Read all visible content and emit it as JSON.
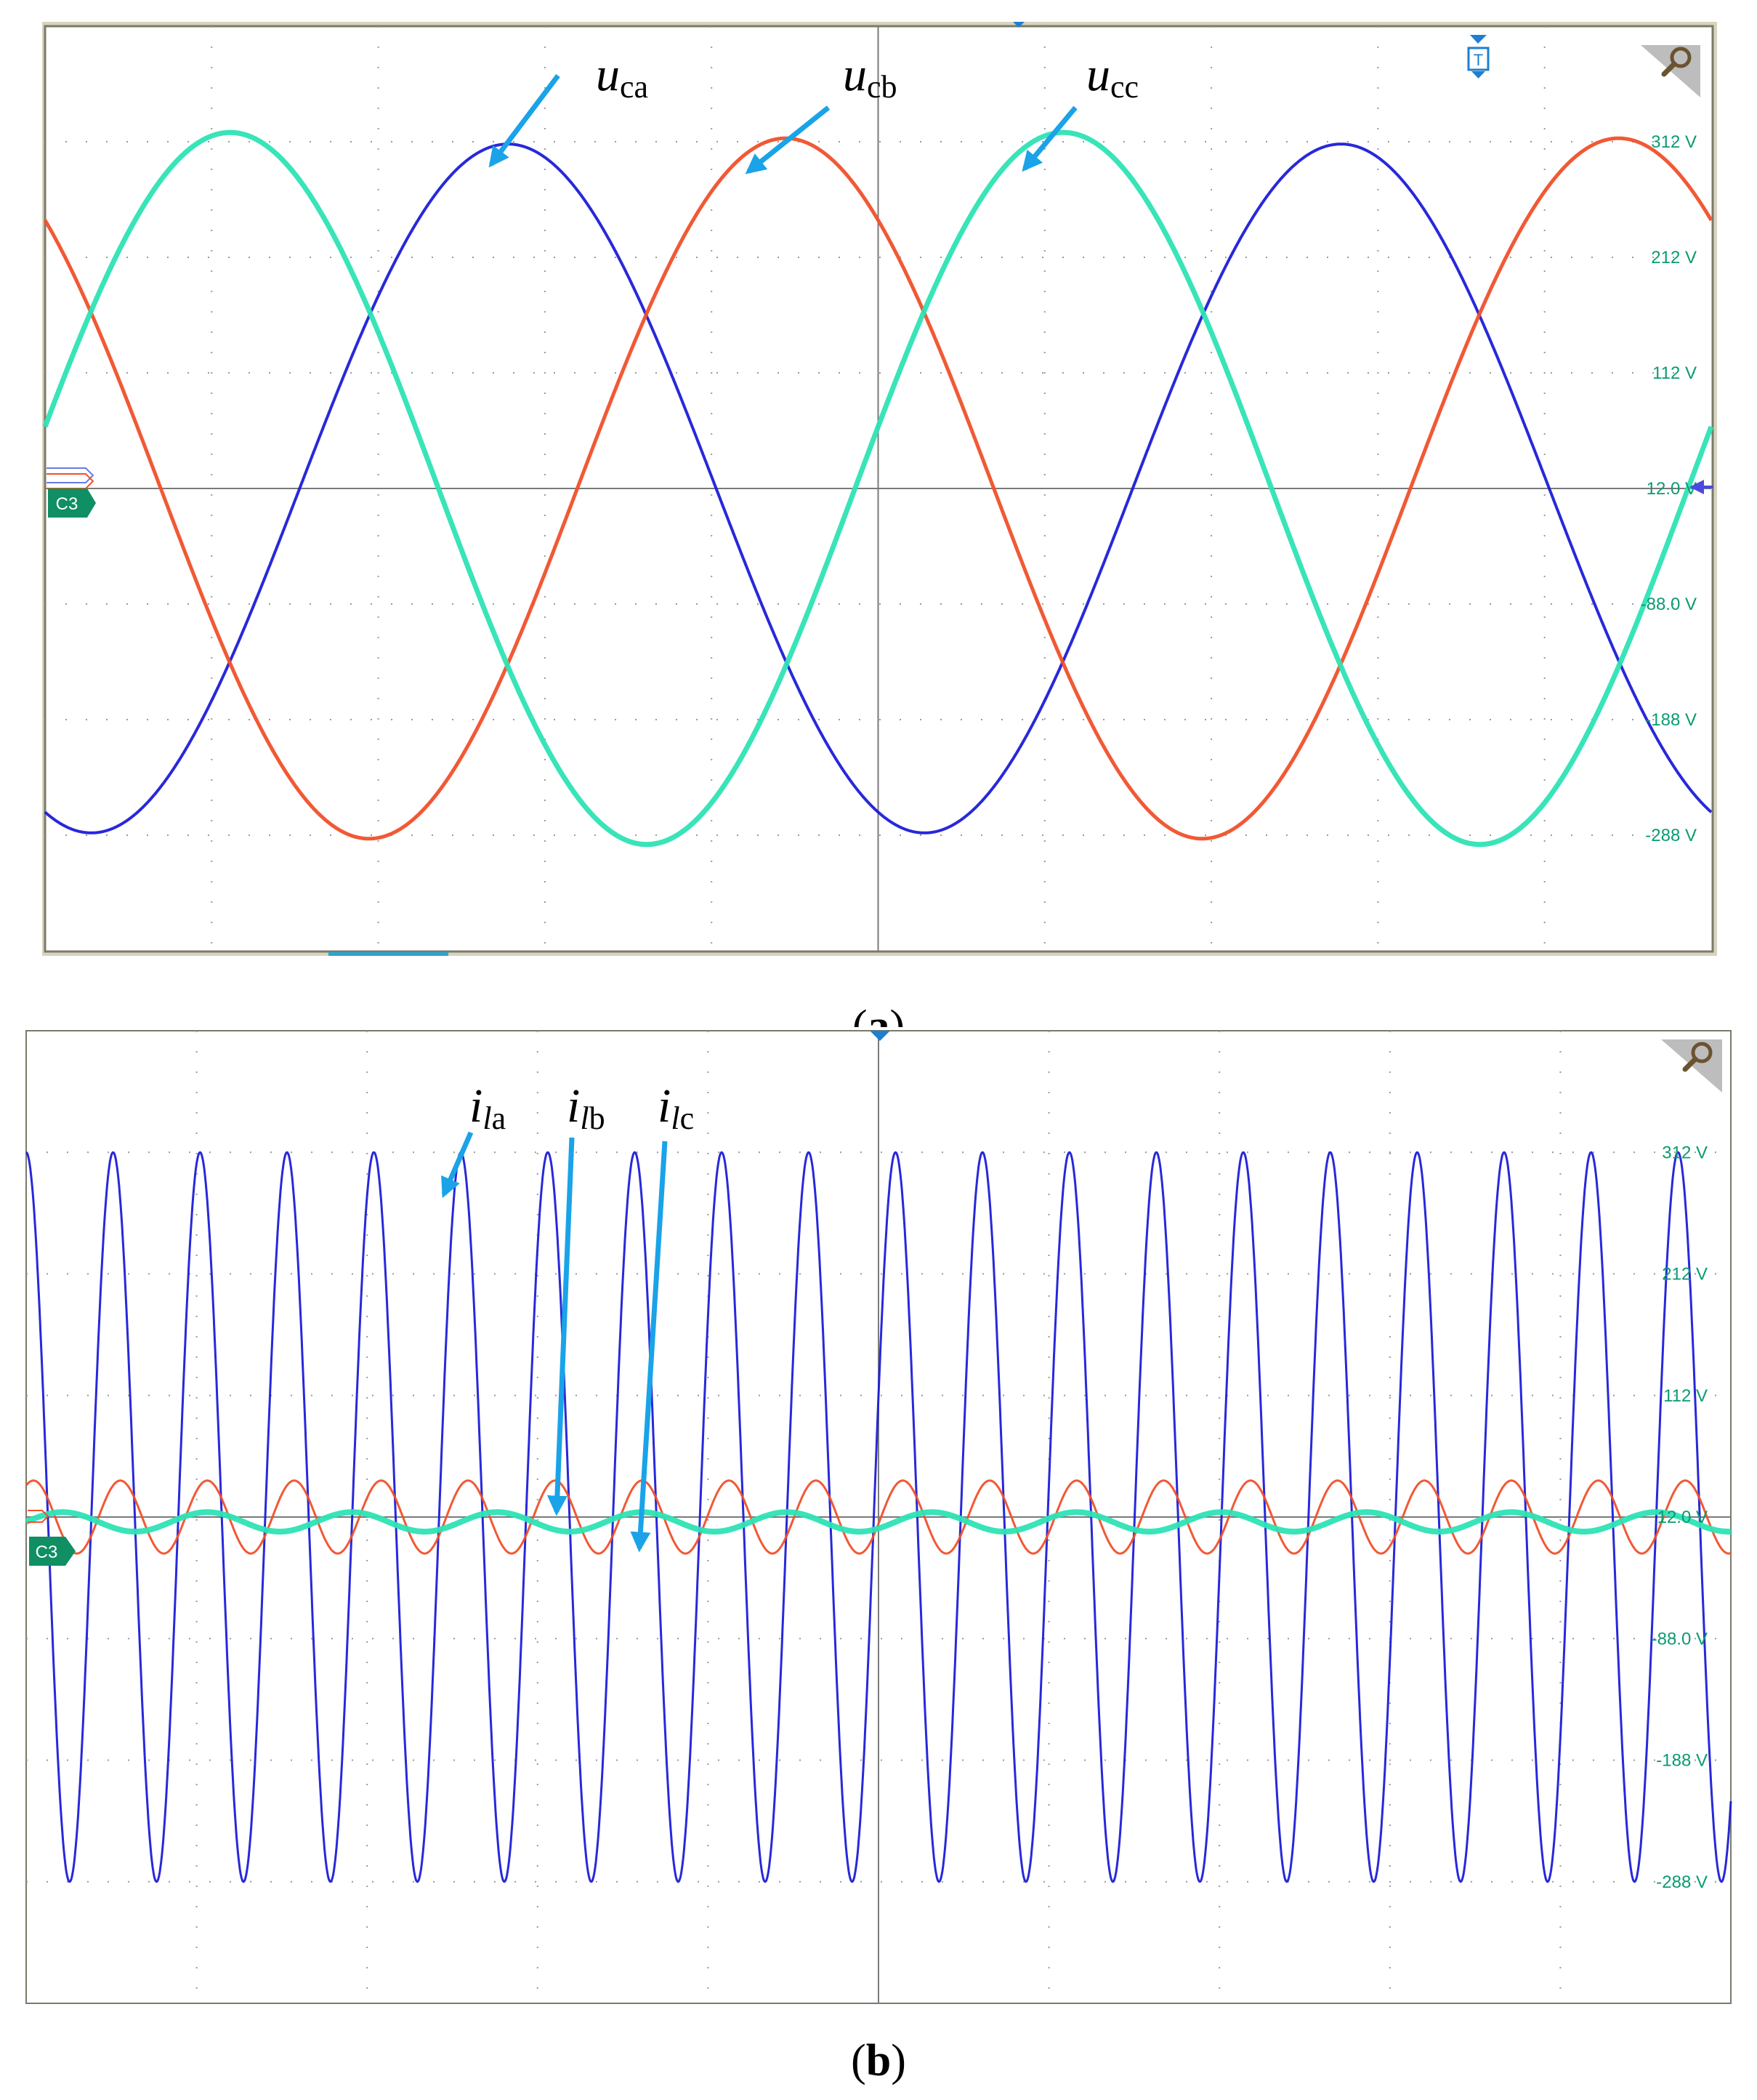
{
  "colors": {
    "phase_a": "#1c1cd8",
    "phase_b": "#f0502a",
    "phase_c": "#2de3b4",
    "axis_labels": "#0a9b72",
    "arrows": "#1aa3e8",
    "grid_dots": "#9a9a9a",
    "frame": "#7a7a6a",
    "bezel": "#d8d3bd"
  },
  "icons": [
    "zoom-corner-icon",
    "magnifier-icon",
    "trigger-marker-icon",
    "channel-marker-icon"
  ],
  "chart_data": [
    {
      "type": "line",
      "panel_label": "a",
      "caption": "(a)",
      "ylabels": [
        "312 V",
        "212 V",
        "112 V",
        "12.0 V",
        "-88.0 V",
        "-188 V",
        "-288 V"
      ],
      "yticks": [
        312,
        212,
        112,
        12,
        -88,
        -188,
        -288
      ],
      "ylim": [
        -388,
        412
      ],
      "xlim": [
        0,
        10
      ],
      "grid": true,
      "channel_marker": "C3",
      "trigger_marker": "T",
      "annotations": [
        {
          "base": "u",
          "sub": "ca",
          "target_series": 0
        },
        {
          "base": "u",
          "sub": "cb",
          "target_series": 1
        },
        {
          "base": "u",
          "sub": "cc",
          "target_series": 2
        }
      ],
      "series": [
        {
          "name": "u_ca",
          "color_key": "phase_a",
          "amplitude": 298,
          "offset": 12,
          "period_div": 5.0,
          "phase_deg": 250,
          "line_width": 4
        },
        {
          "name": "u_cb",
          "color_key": "phase_b",
          "amplitude": 303,
          "offset": 12,
          "period_div": 5.0,
          "phase_deg": 130,
          "line_width": 5
        },
        {
          "name": "u_cc",
          "color_key": "phase_c",
          "amplitude": 308,
          "offset": 12,
          "period_div": 5.0,
          "phase_deg": 10,
          "line_width": 7
        }
      ]
    },
    {
      "type": "line",
      "panel_label": "b",
      "caption": "(b)",
      "ylabels": [
        "312 V",
        "212 V",
        "112 V",
        "12.0 V",
        "-88.0 V",
        "-188 V",
        "-288 V"
      ],
      "yticks": [
        312,
        212,
        112,
        12,
        -88,
        -188,
        -288
      ],
      "ylim": [
        -388,
        412
      ],
      "xlim": [
        0,
        10
      ],
      "grid": true,
      "channel_marker": "C3",
      "annotations": [
        {
          "base": "i",
          "sub_italic": "l",
          "sub": "a",
          "target_series": 0
        },
        {
          "base": "i",
          "sub_italic": "l",
          "sub": "b",
          "target_series": 1
        },
        {
          "base": "i",
          "sub_italic": "l",
          "sub": "c",
          "target_series": 2
        }
      ],
      "series": [
        {
          "name": "i_la",
          "color_key": "phase_a",
          "amplitude": 300,
          "offset": 12,
          "period_div": 0.51,
          "phase_deg": 90,
          "line_width": 3
        },
        {
          "name": "i_lb",
          "color_key": "phase_b",
          "amplitude": 30,
          "offset": 12,
          "period_div": 0.51,
          "phase_deg": 60,
          "line_width": 3
        },
        {
          "name": "i_lc",
          "color_key": "phase_c",
          "amplitude": 8,
          "offset": 8,
          "period_div": 0.85,
          "phase_deg": 0,
          "line_width": 8
        }
      ]
    }
  ]
}
